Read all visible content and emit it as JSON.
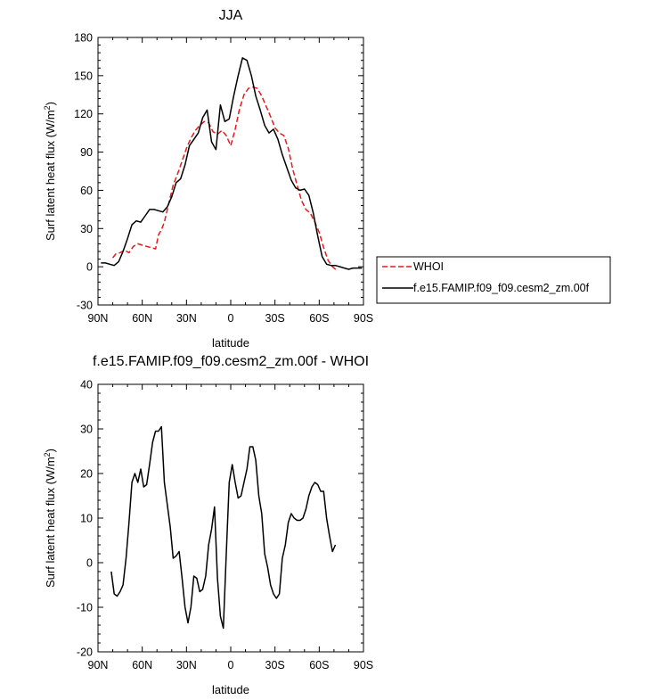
{
  "chart_data": [
    {
      "type": "line",
      "title": "JJA",
      "xlabel": "latitude",
      "ylabel": "Surf latent heat flux (W/m",
      "ylabel_sup": "2",
      "ylabel_end": ")",
      "xlim": [
        90,
        -90
      ],
      "ylim": [
        -30,
        180
      ],
      "x_ticks": [
        90,
        60,
        30,
        0,
        -30,
        -60,
        -90
      ],
      "x_tick_labels": [
        "90N",
        "60N",
        "30N",
        "0",
        "30S",
        "60S",
        "90S"
      ],
      "y_ticks": [
        -30,
        0,
        30,
        60,
        90,
        120,
        150,
        180
      ],
      "y_tick_labels": [
        "-30",
        "0",
        "30",
        "60",
        "90",
        "120",
        "150",
        "180"
      ],
      "legend_position": "right",
      "series": [
        {
          "name": "WHOI",
          "color": "#e41a1c",
          "dash": "dashed",
          "x": [
            80,
            78,
            75,
            72,
            69,
            66,
            63,
            60,
            57,
            54,
            51,
            49,
            47,
            45,
            42,
            39,
            36,
            33,
            30,
            27,
            24,
            21,
            18,
            15,
            12,
            9,
            6,
            3,
            0,
            -3,
            -6,
            -9,
            -12,
            -15,
            -18,
            -21,
            -24,
            -27,
            -30,
            -33,
            -36,
            -39,
            -42,
            -45,
            -48,
            -51,
            -54,
            -57,
            -60,
            -63,
            -66,
            -69,
            -72
          ],
          "y": [
            7,
            10,
            11,
            13,
            11,
            16,
            18,
            17,
            16,
            15,
            14,
            25,
            29,
            35,
            50,
            64,
            73,
            83,
            93,
            101,
            107,
            111,
            114,
            113,
            106,
            104,
            107,
            103,
            95,
            108,
            124,
            135,
            140,
            141,
            140,
            134,
            126,
            118,
            109,
            105,
            103,
            93,
            77,
            64,
            52,
            45,
            42,
            35,
            27,
            15,
            5,
            0,
            -3
          ]
        },
        {
          "name": "f.e15.FAMIP.f09_f09.cesm2_zm.00f",
          "color": "#000000",
          "dash": "solid",
          "x": [
            88,
            85,
            82,
            79,
            76,
            73,
            70,
            67,
            64,
            61,
            58,
            55,
            52,
            49,
            46,
            43,
            40,
            37,
            34,
            31,
            28,
            25,
            22,
            19,
            16,
            13,
            10,
            7,
            4,
            1,
            -2,
            -5,
            -8,
            -11,
            -14,
            -17,
            -20,
            -23,
            -26,
            -29,
            -32,
            -35,
            -38,
            -41,
            -44,
            -47,
            -50,
            -53,
            -56,
            -59,
            -62,
            -65,
            -68,
            -71,
            -74,
            -77,
            -80,
            -83,
            -86,
            -89
          ],
          "y": [
            3,
            3,
            2,
            1,
            4,
            12,
            22,
            33,
            36,
            35,
            40,
            45,
            45,
            44,
            43,
            47,
            55,
            66,
            69,
            80,
            95,
            100,
            105,
            117,
            123,
            98,
            92,
            127,
            114,
            116,
            134,
            150,
            164,
            162,
            150,
            134,
            123,
            111,
            105,
            108,
            100,
            88,
            78,
            68,
            62,
            60,
            61,
            56,
            42,
            24,
            8,
            2,
            1,
            1,
            0,
            -1,
            -2,
            -1,
            -1,
            -1
          ]
        }
      ]
    },
    {
      "type": "line",
      "title": "f.e15.FAMIP.f09_f09.cesm2_zm.00f - WHOI",
      "xlabel": "latitude",
      "ylabel": "Surf latent heat flux (W/m",
      "ylabel_sup": "2",
      "ylabel_end": ")",
      "xlim": [
        90,
        -90
      ],
      "ylim": [
        -20,
        40
      ],
      "x_ticks": [
        90,
        60,
        30,
        0,
        -30,
        -60,
        -90
      ],
      "x_tick_labels": [
        "90N",
        "60N",
        "30N",
        "0",
        "30S",
        "60S",
        "90S"
      ],
      "y_ticks": [
        -20,
        -10,
        0,
        10,
        20,
        30,
        40
      ],
      "y_tick_labels": [
        "-20",
        "-10",
        "0",
        "10",
        "20",
        "30",
        "40"
      ],
      "series": [
        {
          "color": "#000000",
          "dash": "solid",
          "x": [
            81,
            79,
            77,
            75,
            73,
            71,
            69,
            67,
            65,
            63,
            61,
            59,
            57,
            55,
            53,
            51,
            49,
            47,
            45,
            43,
            41,
            39,
            37,
            35,
            33,
            31,
            29,
            27,
            25,
            23,
            21,
            19,
            17,
            15,
            13,
            11,
            9,
            7,
            5,
            3,
            1,
            -1,
            -3,
            -5,
            -7,
            -9,
            -11,
            -13,
            -15,
            -17,
            -19,
            -21,
            -23,
            -25,
            -27,
            -29,
            -31,
            -33,
            -35,
            -37,
            -39,
            -41,
            -43,
            -45,
            -47,
            -49,
            -51,
            -53,
            -55,
            -57,
            -59,
            -61,
            -63,
            -65,
            -67,
            -69,
            -71
          ],
          "y": [
            -2,
            -7,
            -7.5,
            -6.5,
            -5,
            1,
            9,
            18,
            20,
            18,
            21,
            17,
            17.5,
            22,
            27,
            29.5,
            29.5,
            30.5,
            18,
            13,
            8,
            1,
            1.5,
            2.5,
            -3.5,
            -10,
            -13.5,
            -10,
            -3,
            -3.5,
            -6.5,
            -6,
            -3,
            4,
            7.5,
            12.5,
            -3.5,
            -12,
            -14.7,
            2,
            18,
            22,
            18,
            14.5,
            15,
            18,
            21,
            26,
            26,
            23,
            15,
            11,
            2,
            -1,
            -5,
            -7,
            -8,
            -7,
            1,
            4,
            9,
            11,
            10,
            9.5,
            9.5,
            10,
            12,
            15,
            17,
            18,
            17.5,
            16,
            16,
            10,
            6,
            2.5,
            4
          ]
        }
      ]
    }
  ]
}
